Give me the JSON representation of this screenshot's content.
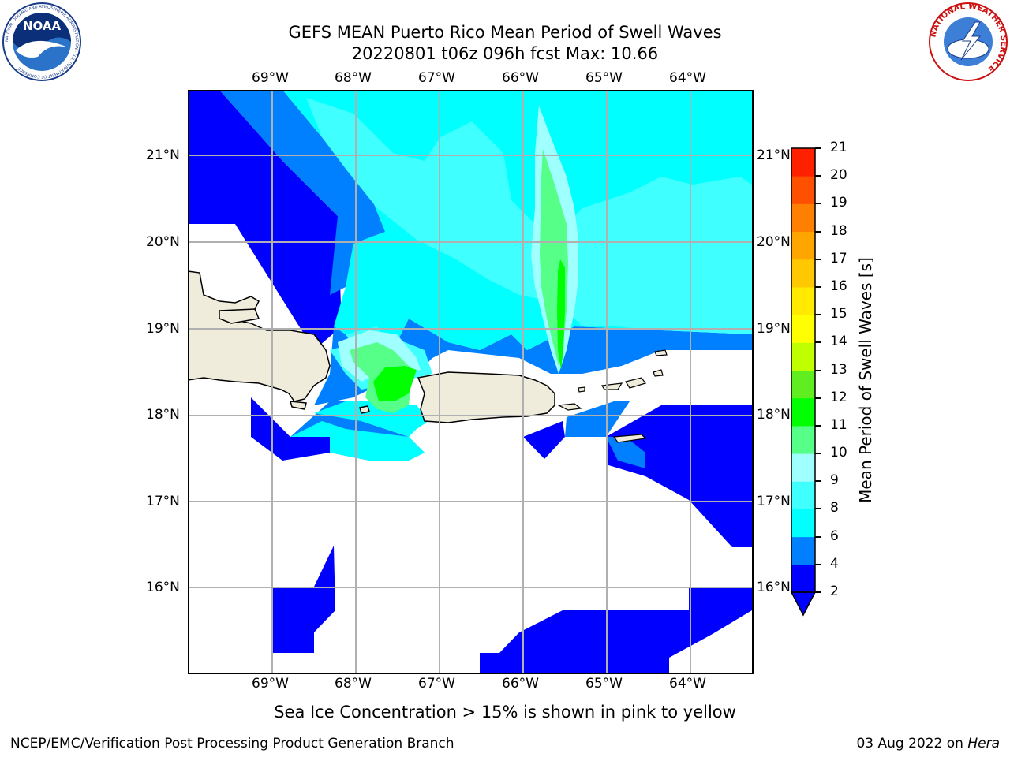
{
  "header": {
    "title_line1": "GEFS MEAN Puerto Rico Mean Period of Swell Waves",
    "title_line2": "20220801 t06z 096h fcst   Max: 10.66"
  },
  "logos": {
    "left_name": "NOAA",
    "left_ring_text": "NATIONAL OCEANIC AND ATMOSPHERIC ADMINISTRATION · U.S. DEPARTMENT OF COMMERCE",
    "right_ring_text": "NATIONAL WEATHER SERVICE"
  },
  "map": {
    "lon_labels": [
      "69°W",
      "68°W",
      "67°W",
      "66°W",
      "65°W",
      "64°W"
    ],
    "lat_labels": [
      "21°N",
      "20°N",
      "19°N",
      "18°N",
      "17°N",
      "16°N"
    ],
    "land_color": "#efecdc",
    "grid_color": "#b0b0b0"
  },
  "colorbar": {
    "label": "Mean Period of Swell Waves [s]",
    "ticks": [
      "2",
      "4",
      "6",
      "8",
      "9",
      "10",
      "11",
      "12",
      "13",
      "14",
      "15",
      "16",
      "17",
      "18",
      "19",
      "20",
      "21"
    ],
    "colors": [
      "#0000ff",
      "#0080ff",
      "#00ffff",
      "#40ffff",
      "#a0ffff",
      "#55ff88",
      "#00ff00",
      "#60ee20",
      "#c0ff00",
      "#ffff00",
      "#ffea00",
      "#ffc800",
      "#ffa500",
      "#ff8000",
      "#ff5000",
      "#ff2000",
      "#ff0000"
    ]
  },
  "footer": {
    "note": "Sea Ice Concentration > 15% is shown in pink to yellow",
    "left": "NCEP/EMC/Verification Post Processing Product Generation Branch",
    "right_date": "03 Aug 2022 on",
    "right_host": "Hera"
  }
}
